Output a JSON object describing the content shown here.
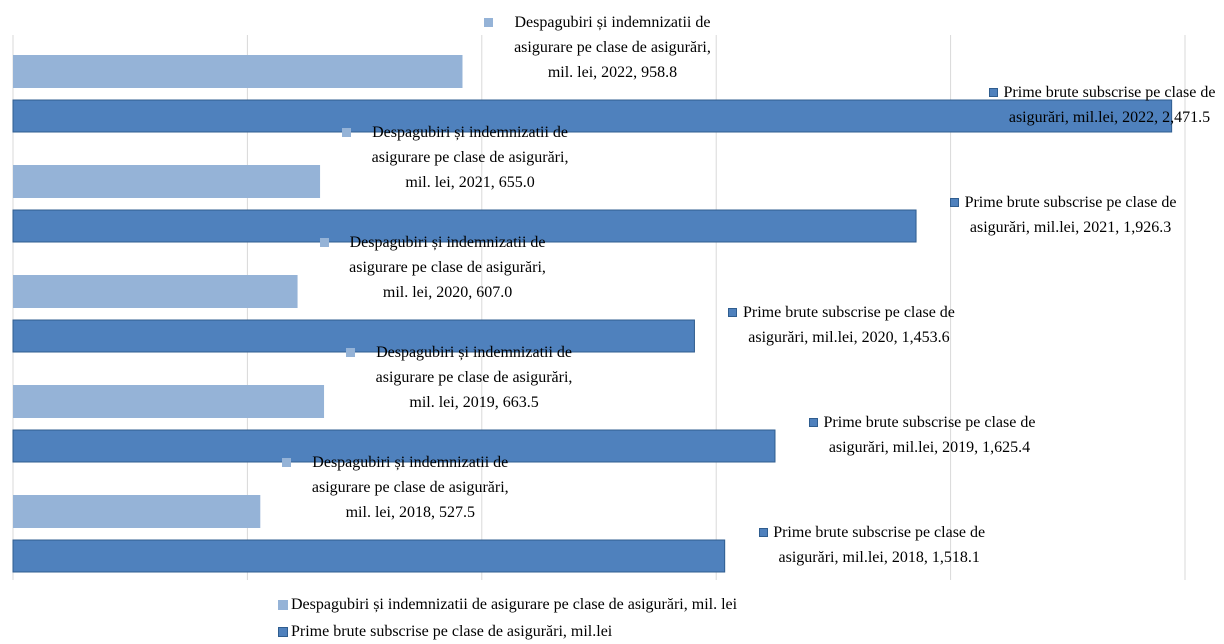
{
  "chart_data": {
    "type": "bar",
    "orientation": "horizontal",
    "categories": [
      "2018",
      "2019",
      "2020",
      "2021",
      "2022"
    ],
    "series": [
      {
        "name": "Despagubiri și indemnizatii de asigurare pe clase de asigurări, mil. lei",
        "color": "#95b3d7",
        "values": [
          527.5,
          663.5,
          607.0,
          655.0,
          958.8
        ],
        "value_labels": [
          "Despagubiri și indemnizatii de asigurare pe clase de asigurări, mil. lei, 2018, 527.5",
          "Despagubiri și indemnizatii de asigurare pe clase de asigurări, mil. lei, 2019, 663.5",
          "Despagubiri și indemnizatii de asigurare pe clase de asigurări, mil. lei, 2020, 607.0",
          "Despagubiri și indemnizatii de asigurare pe clase de asigurări, mil. lei, 2021, 655.0",
          "Despagubiri și indemnizatii de asigurare pe clase de asigurări, mil. lei, 2022, 958.8"
        ]
      },
      {
        "name": "Prime brute subscrise pe clase de asigurări, mil.lei",
        "color": "#4f81bd",
        "values": [
          1518.1,
          1625.4,
          1453.6,
          1926.3,
          2471.5
        ],
        "value_labels": [
          "Prime brute subscrise pe clase de asigurări, mil.lei, 2018, 1,518.1",
          "Prime brute subscrise pe clase de asigurări, mil.lei, 2019, 1,625.4",
          "Prime brute subscrise pe clase de asigurări, mil.lei, 2020, 1,453.6",
          "Prime brute subscrise pe clase de asigurări, mil.lei, 2021, 1,926.3",
          "Prime brute subscrise pe clase de asigurări, mil.lei, 2022, 2,471.5"
        ]
      }
    ],
    "xlim": [
      0,
      2500
    ],
    "xticks": [
      0,
      500,
      1000,
      1500,
      2000,
      2500
    ],
    "grid": true,
    "legend": "bottom"
  }
}
